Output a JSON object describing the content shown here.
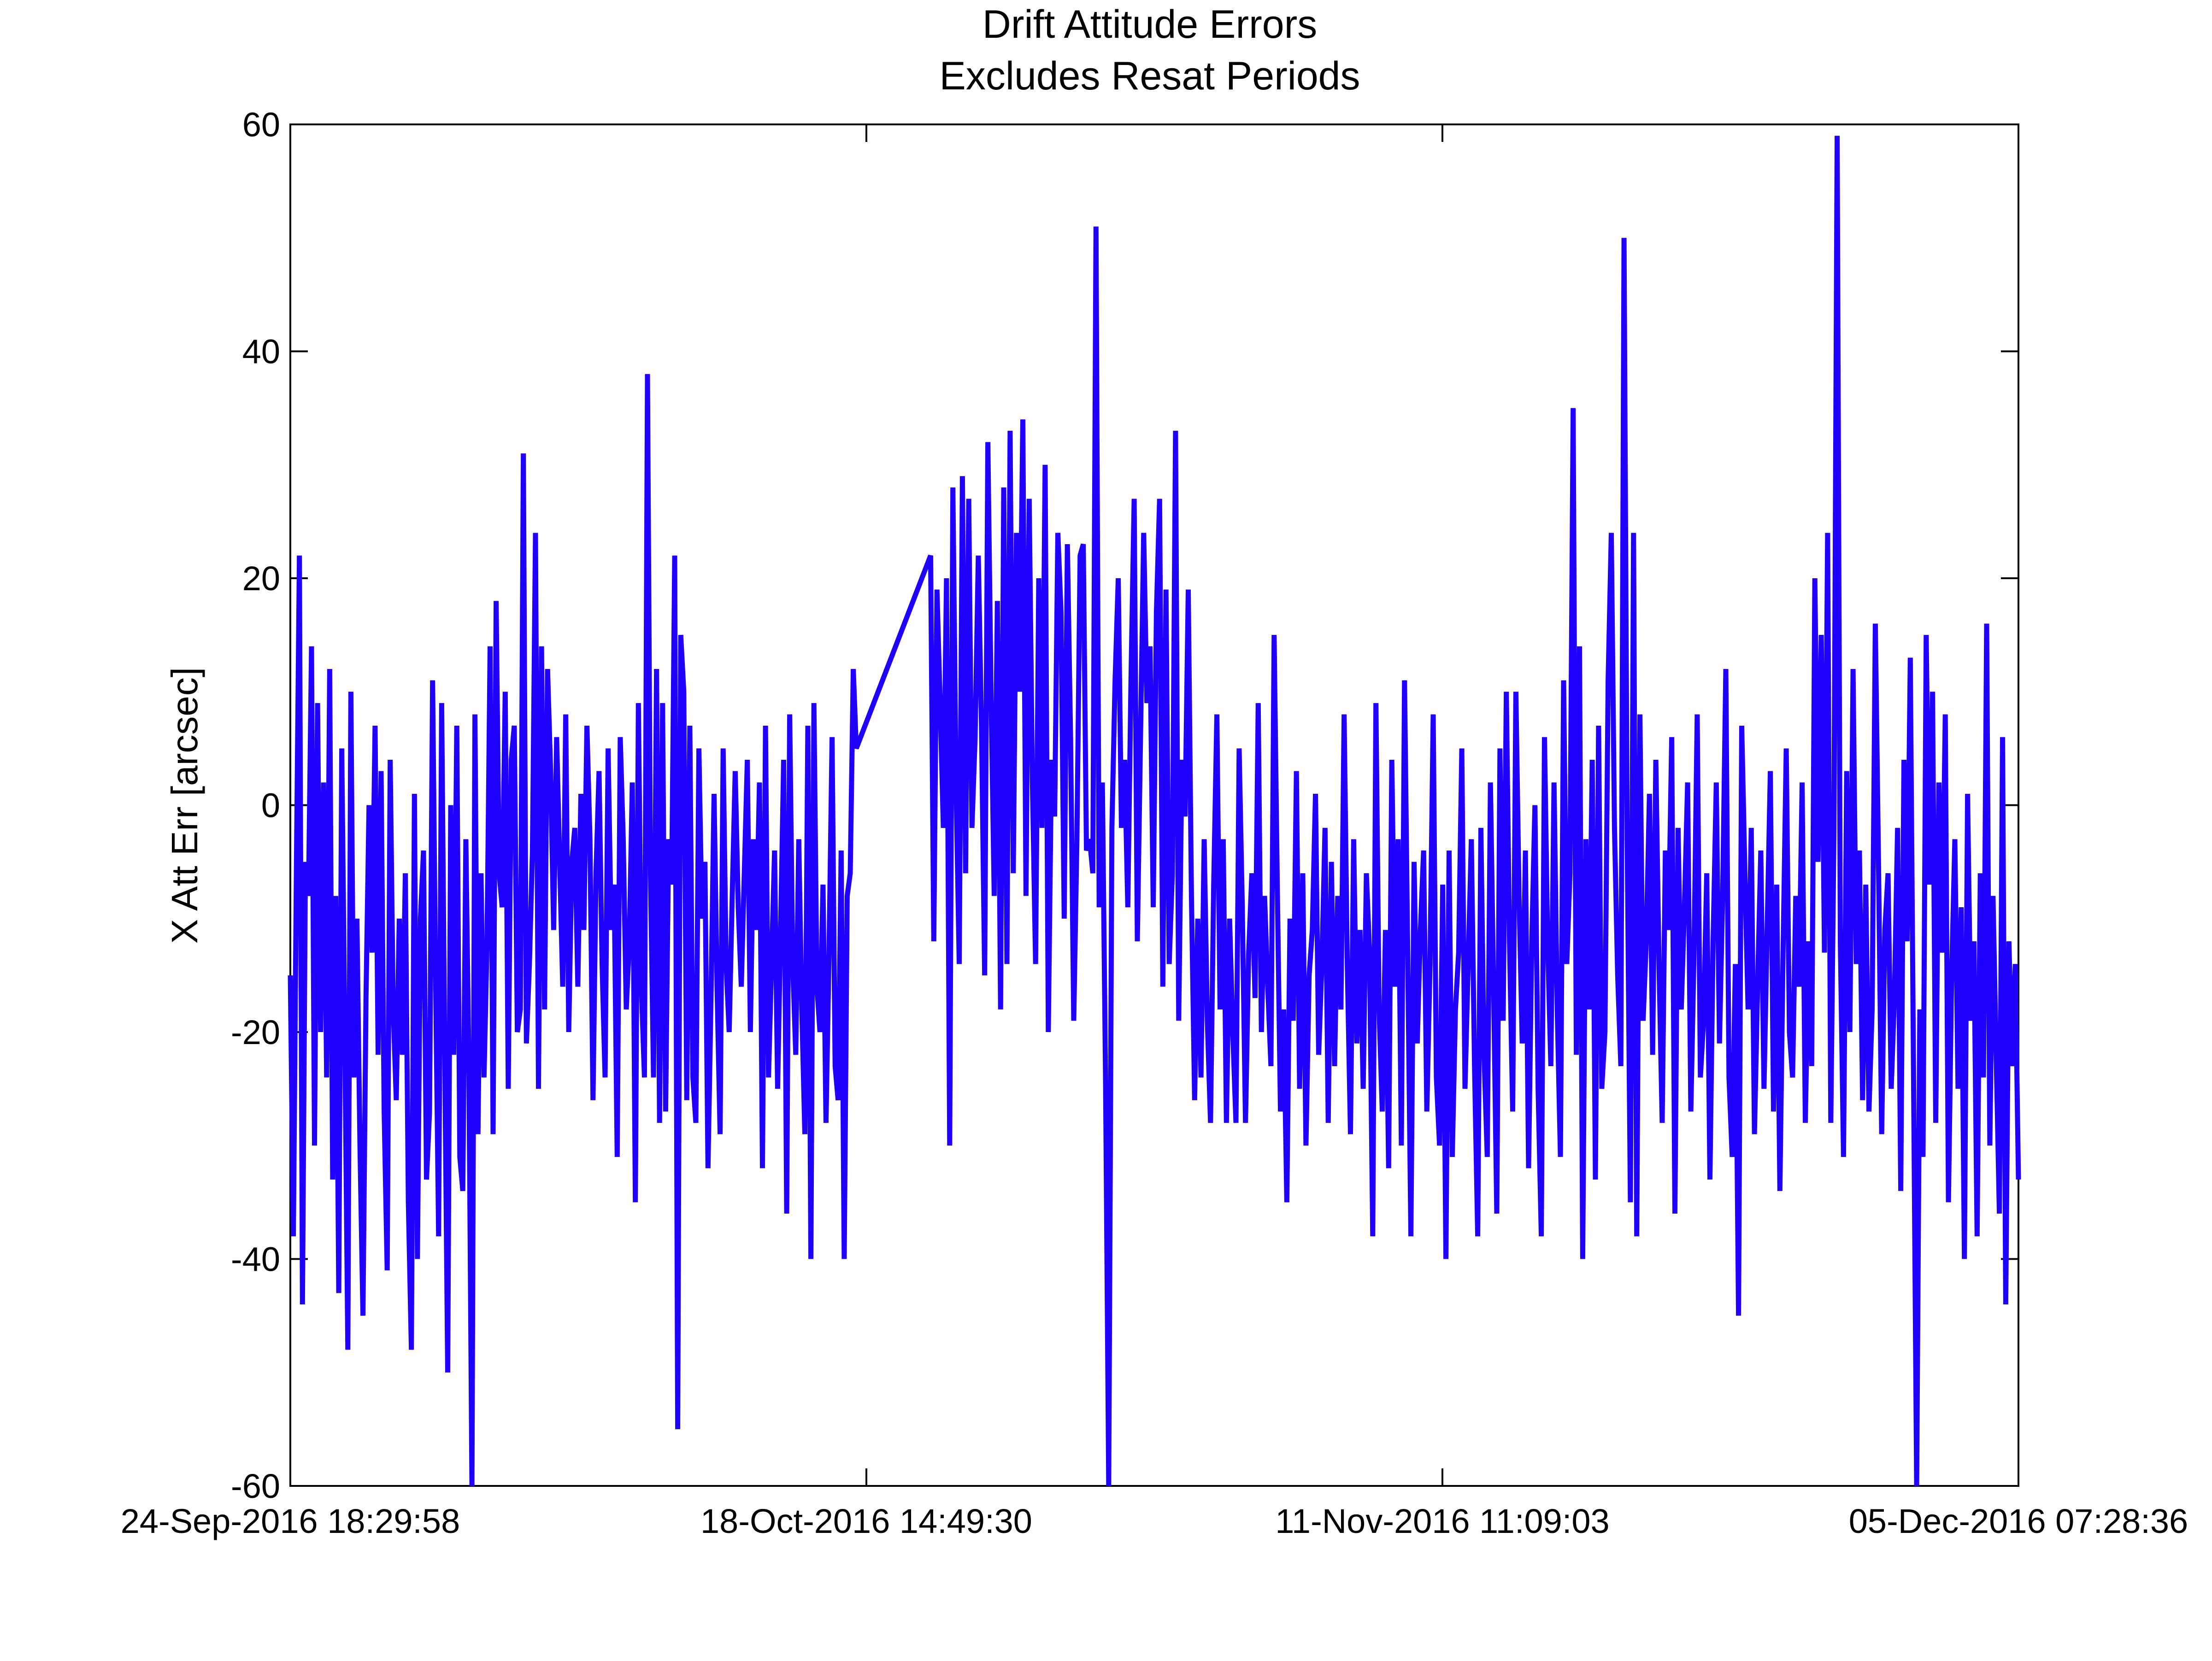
{
  "chart_data": {
    "type": "line",
    "title": "Drift Attitude Errors",
    "subtitle": "Excludes Resat Periods",
    "xlabel": "",
    "ylabel": "X Att Err [arcsec]",
    "x_tick_labels": [
      "24-Sep-2016 18:29:58",
      "18-Oct-2016 14:49:30",
      "11-Nov-2016 11:09:03",
      "05-Dec-2016 07:28:36"
    ],
    "xlim": [
      "24-Sep-2016 18:29:58",
      "05-Dec-2016 07:28:36"
    ],
    "y_tick_labels": [
      "60",
      "40",
      "20",
      "0",
      "-20",
      "-40",
      "-60"
    ],
    "y_ticks": [
      60,
      40,
      20,
      0,
      -20,
      -40,
      -60
    ],
    "ylim": [
      -60,
      60
    ],
    "grid": false,
    "line_color": "#1f00ff",
    "series": [
      {
        "values": [
          -15,
          -38,
          -6,
          22,
          -44,
          -5,
          -8,
          14,
          -30,
          9,
          -20,
          2,
          -24,
          12,
          -33,
          -8,
          -43,
          5,
          -20,
          -48,
          10,
          -24,
          -10,
          -30,
          -45,
          -17,
          0,
          -13,
          7,
          -22,
          3,
          -27,
          -41,
          4,
          -18,
          -26,
          -10,
          -22,
          -6,
          -35,
          -48,
          1,
          -40,
          -10,
          -4,
          -33,
          -27,
          11,
          -15,
          -38,
          9,
          -21,
          -50,
          0,
          -22,
          7,
          -31,
          -34,
          -3,
          -23,
          -60,
          8,
          -29,
          -6,
          -24,
          -12,
          14,
          -29,
          18,
          -6,
          -9,
          10,
          -25,
          4,
          7,
          -20,
          -18,
          31,
          -21,
          -14,
          -4,
          24,
          -25,
          14,
          -18,
          12,
          3,
          -11,
          6,
          -5,
          -16,
          8,
          -20,
          -5,
          -2,
          -16,
          1,
          -11,
          7,
          -3,
          -26,
          -6,
          3,
          -14,
          -24,
          5,
          -11,
          -7,
          -31,
          6,
          -3,
          -18,
          -12,
          2,
          -35,
          9,
          -16,
          -24,
          38,
          -6,
          -24,
          12,
          -28,
          9,
          -27,
          -3,
          -7,
          22,
          -55,
          15,
          10,
          -26,
          7,
          -24,
          -28,
          5,
          -10,
          -5,
          -32,
          -17,
          1,
          -16,
          -29,
          5,
          -14,
          -20,
          -8,
          3,
          -9,
          -16,
          -6,
          4,
          -20,
          -3,
          -11,
          2,
          -32,
          7,
          -24,
          -14,
          -4,
          -25,
          -11,
          4,
          -36,
          8,
          -14,
          -22,
          -3,
          -18,
          -29,
          7,
          -40,
          9,
          -16,
          -20,
          -7,
          -28,
          -13,
          6,
          -23,
          -26,
          -4,
          -40,
          -8,
          -6,
          12,
          5,
          22,
          -12,
          19,
          9,
          -2,
          20,
          -30,
          28,
          2,
          -14,
          29,
          -6,
          27,
          -2,
          6,
          22,
          7,
          -15,
          32,
          10,
          -8,
          18,
          -18,
          28,
          -14,
          33,
          -6,
          24,
          10,
          34,
          -8,
          27,
          2,
          -14,
          20,
          -2,
          30,
          -20,
          4,
          -1,
          24,
          17,
          -10,
          23,
          6,
          -19,
          -3,
          22,
          23,
          -4,
          -3,
          -6,
          51,
          -9,
          2,
          -24,
          -60,
          -2,
          11,
          20,
          -2,
          4,
          -9,
          11,
          27,
          -12,
          6,
          24,
          9,
          14,
          -9,
          17,
          27,
          -16,
          19,
          -14,
          -6,
          33,
          -19,
          4,
          -1,
          19,
          -8,
          -26,
          -10,
          -24,
          -3,
          -19,
          -28,
          -7,
          8,
          -18,
          -3,
          -28,
          -10,
          -20,
          -28,
          5,
          -9,
          -28,
          -13,
          -6,
          -17,
          9,
          -20,
          -8,
          -16,
          -23,
          15,
          -7,
          -27,
          -18,
          -35,
          -10,
          -19,
          3,
          -25,
          -6,
          -30,
          -15,
          -11,
          1,
          -22,
          -14,
          -2,
          -28,
          -5,
          -23,
          -8,
          -18,
          8,
          -14,
          -29,
          -3,
          -21,
          -11,
          -25,
          -6,
          -13,
          -38,
          9,
          -18,
          -27,
          -11,
          -32,
          4,
          -16,
          -3,
          -30,
          11,
          -13,
          -38,
          -5,
          -21,
          -11,
          -4,
          -27,
          -14,
          8,
          -24,
          -30,
          -7,
          -40,
          -4,
          -31,
          -18,
          -13,
          5,
          -25,
          -14,
          -3,
          -23,
          -38,
          -2,
          -22,
          -31,
          2,
          -16,
          -36,
          5,
          -19,
          10,
          -12,
          -27,
          10,
          -8,
          -21,
          -4,
          -32,
          -12,
          0,
          -25,
          -38,
          6,
          -12,
          -23,
          2,
          -18,
          -31,
          11,
          -14,
          -6,
          35,
          -22,
          14,
          -40,
          -3,
          -18,
          4,
          -33,
          7,
          -25,
          -20,
          11,
          24,
          -2,
          -15,
          -23,
          50,
          -3,
          -35,
          24,
          -38,
          8,
          -19,
          -12,
          1,
          -22,
          4,
          -14,
          -28,
          -4,
          -11,
          6,
          -36,
          -2,
          -18,
          -9,
          2,
          -27,
          -13,
          8,
          -24,
          -19,
          -6,
          -33,
          -12,
          2,
          -21,
          -8,
          12,
          -24,
          -31,
          -14,
          -45,
          7,
          -6,
          -18,
          -2,
          -29,
          -16,
          -4,
          -25,
          -11,
          3,
          -27,
          -7,
          -34,
          -13,
          5,
          -20,
          -24,
          -8,
          -16,
          2,
          -28,
          -12,
          -23,
          20,
          -5,
          15,
          -13,
          24,
          -28,
          -2,
          59,
          -12,
          -31,
          3,
          -20,
          12,
          -14,
          -4,
          -26,
          -7,
          -27,
          -18,
          16,
          -5,
          -29,
          -11,
          -6,
          -25,
          -17,
          -2,
          -34,
          4,
          -12,
          13,
          -23,
          -60,
          -18,
          -31,
          15,
          -7,
          10,
          -28,
          2,
          -13,
          8,
          -35,
          -15,
          -3,
          -25,
          -9,
          -40,
          1,
          -19,
          -12,
          -38,
          -6,
          -24,
          16,
          -30,
          -8,
          -22,
          -36,
          6,
          -44,
          -12,
          -23,
          -14,
          -33
        ]
      }
    ]
  }
}
